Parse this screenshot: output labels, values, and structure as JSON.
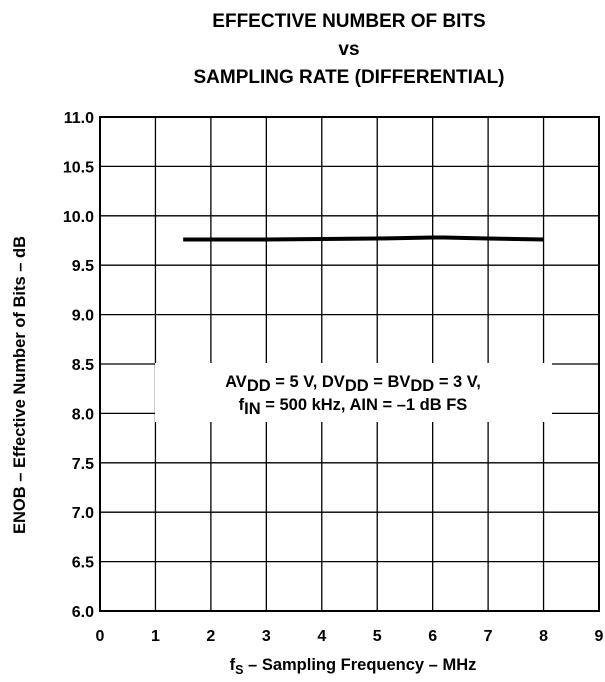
{
  "chart_data": {
    "type": "line",
    "title_lines": [
      "EFFECTIVE NUMBER OF BITS",
      "vs",
      "SAMPLING RATE (DIFFERENTIAL)"
    ],
    "xlabel": {
      "pre": "f",
      "sub": "S",
      "post": " – Sampling Frequency – MHz"
    },
    "ylabel": "ENOB – Effective Number of Bits – dB",
    "xlim": [
      0,
      9
    ],
    "ylim": [
      6.0,
      11.0
    ],
    "xticks": [
      "0",
      "1",
      "2",
      "3",
      "4",
      "5",
      "6",
      "7",
      "8",
      "9"
    ],
    "yticks": [
      "6.0",
      "6.5",
      "7.0",
      "7.5",
      "8.0",
      "8.5",
      "9.0",
      "9.5",
      "10.0",
      "10.5",
      "11.0"
    ],
    "grid": true,
    "series": [
      {
        "x": [
          1.5,
          2,
          3,
          4,
          5,
          6,
          6.2,
          7,
          8
        ],
        "y": [
          9.76,
          9.76,
          9.76,
          9.765,
          9.77,
          9.78,
          9.78,
          9.77,
          9.76
        ],
        "color": "#000000"
      }
    ],
    "annotation": {
      "line1": [
        {
          "t": "AV"
        },
        {
          "t": "DD",
          "sub": true
        },
        {
          "t": " = 5 V, DV"
        },
        {
          "t": "DD",
          "sub": true
        },
        {
          "t": " = BV"
        },
        {
          "t": "DD",
          "sub": true
        },
        {
          "t": " = 3 V,"
        }
      ],
      "line2": [
        {
          "t": "f"
        },
        {
          "t": "IN",
          "sub": true
        },
        {
          "t": " = 500 kHz, AIN = –1 dB FS"
        }
      ]
    }
  }
}
